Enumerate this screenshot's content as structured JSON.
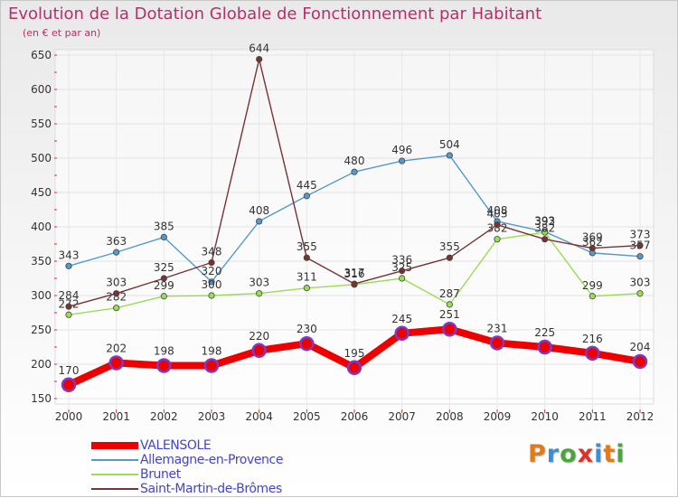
{
  "chart_data": {
    "type": "line",
    "title": "Evolution de la Dotation Globale de Fonctionnement par Habitant",
    "subtitle": "(en € et par an)",
    "x": [
      "2000",
      "2001",
      "2002",
      "2003",
      "2004",
      "2005",
      "2006",
      "2007",
      "2008",
      "2009",
      "2010",
      "2011",
      "2012"
    ],
    "ylim": [
      150,
      650
    ],
    "yticks": [
      150,
      200,
      250,
      300,
      350,
      400,
      450,
      500,
      550,
      600,
      650
    ],
    "grid": true,
    "series": [
      {
        "name": "VALENSOLE",
        "color": "#ee0000",
        "values": [
          170,
          202,
          198,
          198,
          220,
          230,
          195,
          245,
          251,
          231,
          225,
          216,
          204
        ]
      },
      {
        "name": "Allemagne-en-Provence",
        "color": "#5599cc",
        "values": [
          343,
          363,
          385,
          320,
          408,
          445,
          480,
          496,
          504,
          408,
          393,
          362,
          357
        ]
      },
      {
        "name": "Brunet",
        "color": "#99dd55",
        "values": [
          272,
          282,
          299,
          300,
          303,
          311,
          316,
          325,
          287,
          382,
          392,
          299,
          303
        ]
      },
      {
        "name": "Saint-Martin-de-Brômes",
        "color": "#773333",
        "values": [
          284,
          303,
          325,
          348,
          644,
          355,
          317,
          336,
          355,
          403,
          382,
          369,
          373
        ]
      }
    ]
  },
  "brand": {
    "letters": [
      "P",
      "r",
      "o",
      "x",
      "i",
      "t",
      "i"
    ],
    "colors": [
      "#e07a1a",
      "#3a8fd8",
      "#4aa53a",
      "#d8342a",
      "#3a8fd8",
      "#e07a1a",
      "#4aa53a"
    ]
  }
}
